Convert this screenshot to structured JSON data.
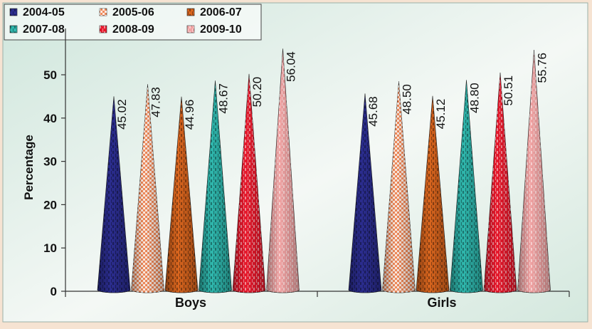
{
  "chart_data": {
    "type": "bar",
    "mark_shape": "cone",
    "categories": [
      "Boys",
      "Girls"
    ],
    "ylabel": "Percentage",
    "xlabel": "",
    "ylim": [
      0,
      60
    ],
    "yticks": [
      0,
      10,
      20,
      30,
      40,
      50
    ],
    "grid": false,
    "legend_position": "top-left",
    "series": [
      {
        "name": "2004-05",
        "values": [
          45.02,
          45.68
        ],
        "labels": [
          "45.02",
          "45.68"
        ],
        "color": "#2b2d8f",
        "fill_pattern": "dashed-dark"
      },
      {
        "name": "2005-06",
        "values": [
          47.83,
          48.5
        ],
        "labels": [
          "47.83",
          "48.50"
        ],
        "color": "#f08a5a",
        "fill_pattern": "checkered-white"
      },
      {
        "name": "2006-07",
        "values": [
          44.96,
          45.12
        ],
        "labels": [
          "44.96",
          "45.12"
        ],
        "color": "#d9651e",
        "fill_pattern": "dashed-dark"
      },
      {
        "name": "2007-08",
        "values": [
          48.67,
          48.8
        ],
        "labels": [
          "48.67",
          "48.80"
        ],
        "color": "#2fb7ad",
        "fill_pattern": "dashed-dark"
      },
      {
        "name": "2008-09",
        "values": [
          50.2,
          50.51
        ],
        "labels": [
          "50.20",
          "50.51"
        ],
        "color": "#e8192c",
        "fill_pattern": "dashed-white"
      },
      {
        "name": "2009-10",
        "values": [
          56.04,
          55.76
        ],
        "labels": [
          "56.04",
          "55.76"
        ],
        "color": "#f1a3a3",
        "fill_pattern": "dashed-white"
      }
    ]
  }
}
